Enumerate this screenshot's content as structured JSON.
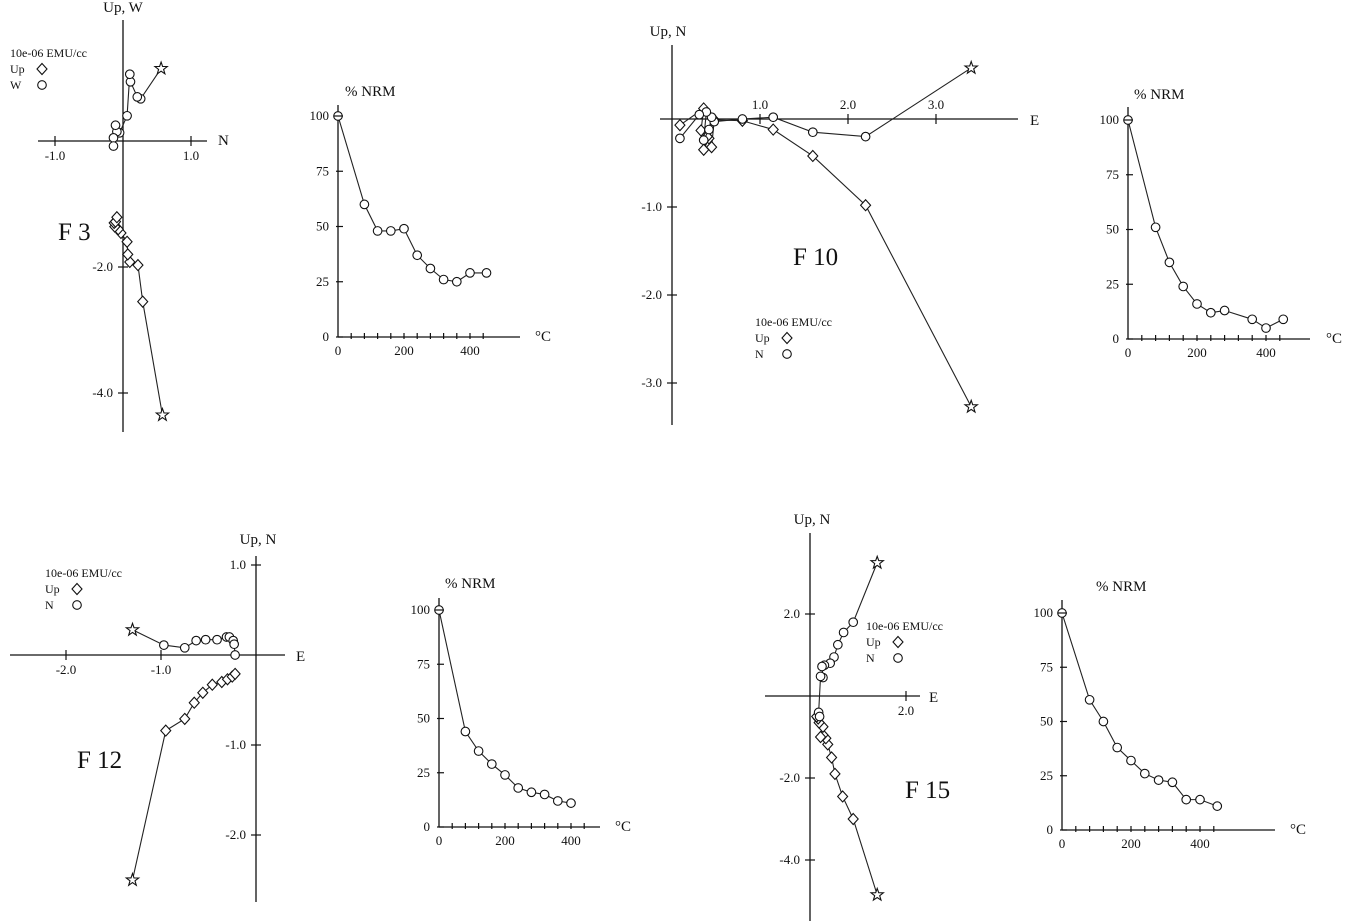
{
  "chart_data": [
    {
      "id": "F3",
      "type": "zijderveld",
      "label": "F 3",
      "vert_axis_label": "Up, W",
      "horiz_axis_label": "N",
      "units": "10e-06 EMU/cc",
      "legend": [
        {
          "symbol": "diamond",
          "label": "Up"
        },
        {
          "symbol": "circle",
          "label": "W"
        }
      ],
      "x_ticks": [
        -1.0,
        1.0
      ],
      "x_tick_labels": [
        "-1.0",
        "1.0"
      ],
      "y_ticks": [
        -2.0,
        -4.0
      ],
      "y_tick_labels": [
        "-2.0",
        "-4.0"
      ],
      "series": [
        {
          "name": "Up",
          "marker": "diamond",
          "points": [
            [
              0.58,
              -4.35
            ],
            [
              0.29,
              -2.55
            ],
            [
              0.22,
              -1.97
            ],
            [
              0.1,
              -1.92
            ],
            [
              0.07,
              -1.8
            ],
            [
              0.06,
              -1.6
            ],
            [
              -0.03,
              -1.46
            ],
            [
              -0.07,
              -1.4
            ],
            [
              -0.12,
              -1.36
            ],
            [
              -0.13,
              -1.3
            ],
            [
              -0.11,
              -1.28
            ],
            [
              -0.09,
              -1.21
            ]
          ]
        },
        {
          "name": "W",
          "marker": "circle",
          "points": [
            [
              0.56,
              1.15
            ],
            [
              0.26,
              0.67
            ],
            [
              0.21,
              0.7
            ],
            [
              0.11,
              0.94
            ],
            [
              0.1,
              1.06
            ],
            [
              0.06,
              0.4
            ],
            [
              -0.05,
              0.13
            ],
            [
              -0.09,
              0.15
            ],
            [
              -0.11,
              0.25
            ],
            [
              -0.14,
              0.05
            ],
            [
              -0.14,
              -0.08
            ]
          ]
        }
      ]
    },
    {
      "id": "F3-nrm",
      "type": "line",
      "ylabel": "% NRM",
      "xlabel": "°C",
      "x_ticks": [
        0,
        200,
        400
      ],
      "y_ticks": [
        0,
        25,
        50,
        75,
        100
      ],
      "x": [
        0,
        80,
        120,
        160,
        200,
        240,
        280,
        320,
        360,
        400,
        450
      ],
      "values": [
        100,
        60,
        48,
        48,
        49,
        37,
        31,
        26,
        25,
        29,
        29
      ]
    },
    {
      "id": "F10",
      "type": "zijderveld",
      "label": "F 10",
      "vert_axis_label": "Up, N",
      "horiz_axis_label": "E",
      "units": "10e-06 EMU/cc",
      "legend": [
        {
          "symbol": "diamond",
          "label": "Up"
        },
        {
          "symbol": "circle",
          "label": "N"
        }
      ],
      "x_ticks": [
        1.0,
        2.0,
        3.0
      ],
      "x_tick_labels": [
        "1.0",
        "2.0",
        "3.0"
      ],
      "y_ticks": [
        -1.0,
        -2.0,
        -3.0
      ],
      "y_tick_labels": [
        "-1.0",
        "-2.0",
        "-3.0"
      ],
      "series": [
        {
          "name": "Up",
          "marker": "diamond",
          "points": [
            [
              3.4,
              -3.27
            ],
            [
              2.2,
              -0.98
            ],
            [
              1.6,
              -0.42
            ],
            [
              1.15,
              -0.12
            ],
            [
              0.8,
              -0.02
            ],
            [
              0.48,
              -0.01
            ],
            [
              0.45,
              -0.32
            ],
            [
              0.42,
              -0.22
            ],
            [
              0.36,
              -0.35
            ],
            [
              0.4,
              -0.2
            ],
            [
              0.33,
              -0.13
            ],
            [
              0.36,
              0.12
            ],
            [
              0.09,
              -0.07
            ]
          ]
        },
        {
          "name": "N",
          "marker": "circle",
          "points": [
            [
              3.4,
              0.58
            ],
            [
              2.2,
              -0.2
            ],
            [
              1.6,
              -0.15
            ],
            [
              1.15,
              0.02
            ],
            [
              0.8,
              0.0
            ],
            [
              0.48,
              -0.03
            ],
            [
              0.45,
              0.02
            ],
            [
              0.42,
              -0.12
            ],
            [
              0.36,
              -0.24
            ],
            [
              0.39,
              0.08
            ],
            [
              0.31,
              0.05
            ],
            [
              0.09,
              -0.22
            ]
          ]
        }
      ]
    },
    {
      "id": "F10-nrm",
      "type": "line",
      "ylabel": "% NRM",
      "xlabel": "°C",
      "x_ticks": [
        0,
        200,
        400
      ],
      "y_ticks": [
        0,
        25,
        50,
        75,
        100
      ],
      "x": [
        0,
        80,
        120,
        160,
        200,
        240,
        280,
        360,
        400,
        450
      ],
      "values": [
        100,
        51,
        35,
        24,
        16,
        12,
        13,
        9,
        5,
        9
      ]
    },
    {
      "id": "F12",
      "type": "zijderveld",
      "label": "F 12",
      "vert_axis_label": "Up, N",
      "horiz_axis_label": "E",
      "units": "10e-06 EMU/cc",
      "legend": [
        {
          "symbol": "diamond",
          "label": "Up"
        },
        {
          "symbol": "circle",
          "label": "N"
        }
      ],
      "x_ticks": [
        -2.0,
        -1.0
      ],
      "x_tick_labels": [
        "-2.0",
        "-1.0"
      ],
      "y_ticks": [
        1.0,
        -1.0,
        -2.0
      ],
      "y_tick_labels": [
        "1.0",
        "-1.0",
        "-2.0"
      ],
      "series": [
        {
          "name": "Up",
          "marker": "diamond",
          "points": [
            [
              -1.3,
              -2.5
            ],
            [
              -0.95,
              -0.84
            ],
            [
              -0.75,
              -0.71
            ],
            [
              -0.65,
              -0.53
            ],
            [
              -0.56,
              -0.42
            ],
            [
              -0.46,
              -0.33
            ],
            [
              -0.36,
              -0.3
            ],
            [
              -0.3,
              -0.27
            ],
            [
              -0.25,
              -0.24
            ],
            [
              -0.22,
              -0.21
            ]
          ]
        },
        {
          "name": "N",
          "marker": "circle",
          "points": [
            [
              -1.3,
              0.28
            ],
            [
              -0.97,
              0.11
            ],
            [
              -0.75,
              0.08
            ],
            [
              -0.63,
              0.16
            ],
            [
              -0.53,
              0.17
            ],
            [
              -0.41,
              0.17
            ],
            [
              -0.31,
              0.2
            ],
            [
              -0.28,
              0.2
            ],
            [
              -0.24,
              0.16
            ],
            [
              -0.23,
              0.12
            ],
            [
              -0.22,
              0.0
            ]
          ]
        }
      ]
    },
    {
      "id": "F12-nrm",
      "type": "line",
      "ylabel": "% NRM",
      "xlabel": "°C",
      "x_ticks": [
        0,
        200,
        400
      ],
      "y_ticks": [
        0,
        25,
        50,
        75,
        100
      ],
      "x": [
        0,
        80,
        120,
        160,
        200,
        240,
        280,
        320,
        360,
        400
      ],
      "values": [
        100,
        44,
        35,
        29,
        24,
        18,
        16,
        15,
        12,
        11
      ]
    },
    {
      "id": "F15",
      "type": "zijderveld",
      "label": "F 15",
      "vert_axis_label": "Up, N",
      "horiz_axis_label": "E",
      "units": "10e-06 EMU/cc",
      "legend": [
        {
          "symbol": "diamond",
          "label": "Up"
        },
        {
          "symbol": "circle",
          "label": "N"
        }
      ],
      "x_ticks": [
        2.0
      ],
      "x_tick_labels": [
        "2.0"
      ],
      "y_ticks": [
        2.0,
        -2.0,
        -4.0
      ],
      "y_tick_labels": [
        "2.0",
        "-2.0",
        "-4.0"
      ],
      "series": [
        {
          "name": "Up",
          "marker": "diamond",
          "points": [
            [
              1.4,
              -4.85
            ],
            [
              0.9,
              -3.0
            ],
            [
              0.68,
              -2.45
            ],
            [
              0.52,
              -1.9
            ],
            [
              0.45,
              -1.5
            ],
            [
              0.37,
              -1.18
            ],
            [
              0.33,
              -1.03
            ],
            [
              0.27,
              -0.95
            ],
            [
              0.22,
              -1.0
            ],
            [
              0.27,
              -0.75
            ],
            [
              0.19,
              -0.65
            ],
            [
              0.17,
              -0.55
            ],
            [
              0.14,
              -0.5
            ]
          ]
        },
        {
          "name": "N",
          "marker": "circle",
          "points": [
            [
              1.4,
              3.25
            ],
            [
              0.9,
              1.8
            ],
            [
              0.7,
              1.55
            ],
            [
              0.58,
              1.25
            ],
            [
              0.5,
              0.95
            ],
            [
              0.42,
              0.8
            ],
            [
              0.3,
              0.75
            ],
            [
              0.25,
              0.72
            ],
            [
              0.27,
              0.45
            ],
            [
              0.22,
              0.48
            ],
            [
              0.18,
              -0.4
            ],
            [
              0.2,
              -0.5
            ]
          ]
        }
      ]
    },
    {
      "id": "F15-nrm",
      "type": "line",
      "ylabel": "% NRM",
      "xlabel": "°C",
      "x_ticks": [
        0,
        200,
        400
      ],
      "y_ticks": [
        0,
        25,
        50,
        75,
        100
      ],
      "x": [
        0,
        80,
        120,
        160,
        200,
        240,
        280,
        320,
        360,
        400,
        450
      ],
      "values": [
        100,
        60,
        50,
        38,
        32,
        26,
        23,
        22,
        14,
        14,
        11
      ]
    }
  ]
}
